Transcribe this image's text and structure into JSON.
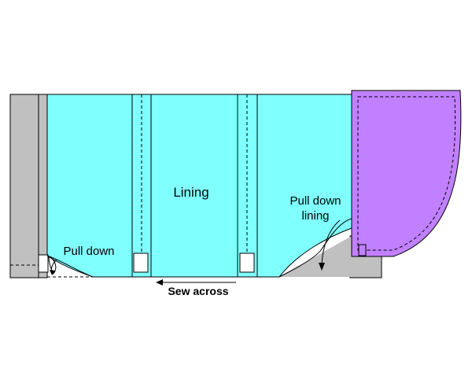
{
  "labels": {
    "lining": "Lining",
    "pull_down": "Pull down",
    "pull_down_lining_line1": "Pull down",
    "pull_down_lining_line2": "lining",
    "sew_across": "Sew across"
  },
  "colors": {
    "lining": "#80FFFF",
    "hem_facing": "#C080FF",
    "backing": "#C0C0C0",
    "outline": "#000000",
    "background": "#FFFFFF"
  }
}
